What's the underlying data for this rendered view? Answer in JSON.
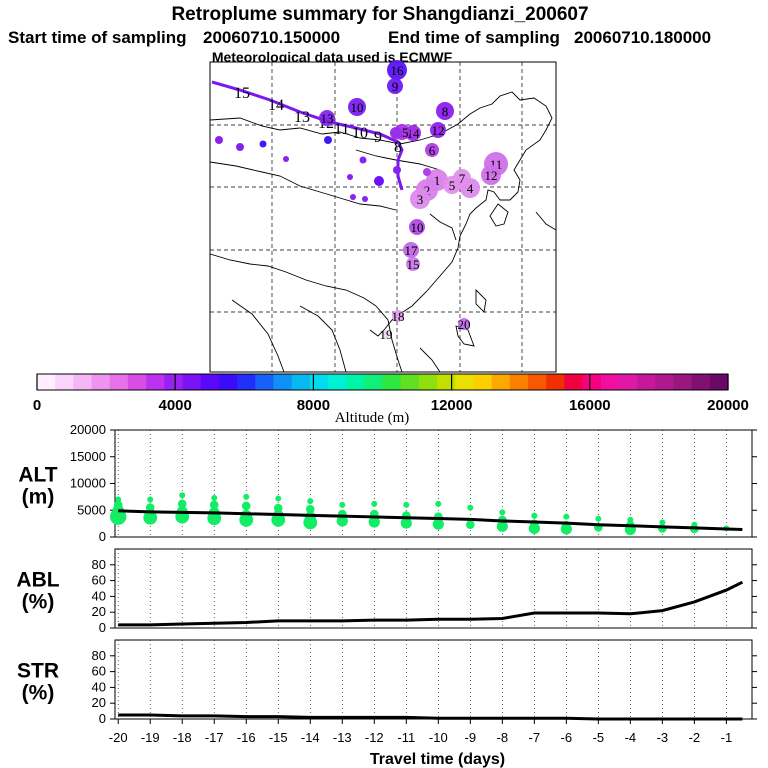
{
  "title": "Retroplume summary for Shangdianzi_200607",
  "subtitle_start_label": "Start time of sampling",
  "subtitle_start_value": "20060710.150000",
  "subtitle_end_label": "End time of sampling",
  "subtitle_end_value": "20060710.180000",
  "met_line": "Meteorological data used is ECMWF",
  "colorbar": {
    "label": "Altitude (m)",
    "ticks": [
      0,
      4000,
      8000,
      12000,
      16000,
      20000
    ],
    "colors": [
      "#ffeeff",
      "#fad4fa",
      "#f4b6f4",
      "#ee94ee",
      "#e870e8",
      "#d94ce6",
      "#bb33ee",
      "#9922f0",
      "#7a14f4",
      "#5a08f7",
      "#3a0cfa",
      "#2030fa",
      "#1860f8",
      "#1090f5",
      "#08b8f0",
      "#00dcec",
      "#00f0d6",
      "#00f4a8",
      "#10f078",
      "#30e640",
      "#60e020",
      "#90e010",
      "#c0e000",
      "#e8e000",
      "#fcd000",
      "#fca800",
      "#fc8000",
      "#f85800",
      "#f03000",
      "#f00040",
      "#f40080",
      "#f010a0",
      "#e018a8",
      "#c8189a",
      "#b01890",
      "#981880",
      "#801070",
      "#6a0868"
    ]
  },
  "map": {
    "trajectory_labels": [
      "15",
      "14",
      "13",
      "12",
      "11",
      "10",
      "9",
      "8"
    ],
    "clusters": [
      {
        "label": "16",
        "color": "#5a14f4",
        "r": 10
      },
      {
        "label": "9",
        "color": "#6e1cf2",
        "r": 8
      },
      {
        "label": "10",
        "color": "#7a20f0",
        "r": 9
      },
      {
        "label": "8",
        "color": "#8a20ee",
        "r": 9
      },
      {
        "label": "13",
        "color": "#8624ee",
        "r": 8
      },
      {
        "label": "12",
        "color": "#9422ee",
        "r": 8
      },
      {
        "label": "14",
        "color": "#a028e8",
        "r": 8
      },
      {
        "label": "15",
        "color": "#a832e6",
        "r": 8
      },
      {
        "label": "6",
        "color": "#b03ee4",
        "r": 7
      },
      {
        "label": "11",
        "color": "#d070e8",
        "r": 12
      },
      {
        "label": "12",
        "color": "#d070e8",
        "r": 10
      },
      {
        "label": "1",
        "color": "#d880ea",
        "r": 11
      },
      {
        "label": "2",
        "color": "#d880ea",
        "r": 11
      },
      {
        "label": "3",
        "color": "#dc8aec",
        "r": 10
      },
      {
        "label": "4",
        "color": "#dc8aec",
        "r": 10
      },
      {
        "label": "5",
        "color": "#e090ec",
        "r": 9
      },
      {
        "label": "7",
        "color": "#e090ec",
        "r": 9
      },
      {
        "label": "10",
        "color": "#b04ae4",
        "r": 8
      },
      {
        "label": "17",
        "color": "#c068e8",
        "r": 8
      },
      {
        "label": "15",
        "color": "#c878ea",
        "r": 7
      },
      {
        "label": "18",
        "color": "#e0a0ee",
        "r": 6
      },
      {
        "label": "19",
        "color": "#f4d6f4",
        "r": 4
      },
      {
        "label": "20",
        "color": "#c06ce8",
        "r": 6
      }
    ]
  },
  "chart_data": [
    {
      "type": "scatter",
      "panel": "ALT",
      "ylabel_line1": "ALT",
      "ylabel_line2": "(m)",
      "ylim": [
        0,
        20000
      ],
      "yticks": [
        0,
        5000,
        10000,
        15000,
        20000
      ],
      "xlim": [
        -20,
        -0.5
      ],
      "mean_line": {
        "x": [
          -20,
          -19,
          -18,
          -17,
          -16,
          -15,
          -14,
          -13,
          -12,
          -11,
          -10,
          -9,
          -8,
          -7,
          -6,
          -5,
          -4,
          -3,
          -2,
          -1,
          -0.5
        ],
        "y": [
          4900,
          4700,
          4600,
          4500,
          4350,
          4200,
          4050,
          3900,
          3750,
          3600,
          3450,
          3300,
          3000,
          2800,
          2600,
          2300,
          2100,
          1900,
          1700,
          1500,
          1400
        ]
      },
      "points": [
        {
          "x": -20,
          "y": [
            7000,
            6000,
            5000,
            4200,
            3800
          ]
        },
        {
          "x": -19,
          "y": [
            7000,
            5500,
            4200,
            3600
          ]
        },
        {
          "x": -18,
          "y": [
            7800,
            6200,
            4700,
            3800
          ]
        },
        {
          "x": -17,
          "y": [
            7300,
            6000,
            4500,
            3500
          ]
        },
        {
          "x": -16,
          "y": [
            7500,
            5800,
            4000,
            3200
          ]
        },
        {
          "x": -15,
          "y": [
            7200,
            5400,
            4000,
            3200
          ]
        },
        {
          "x": -14,
          "y": [
            6700,
            5200,
            3700,
            2700
          ]
        },
        {
          "x": -13,
          "y": [
            6000,
            4300,
            3000
          ]
        },
        {
          "x": -12,
          "y": [
            6200,
            4300,
            2800
          ]
        },
        {
          "x": -11,
          "y": [
            6000,
            4000,
            2600
          ]
        },
        {
          "x": -10,
          "y": [
            6200,
            3800,
            2400
          ]
        },
        {
          "x": -9,
          "y": [
            5500,
            2300
          ]
        },
        {
          "x": -8,
          "y": [
            4600,
            3200,
            2000
          ]
        },
        {
          "x": -7,
          "y": [
            4000,
            2500,
            1600
          ]
        },
        {
          "x": -6,
          "y": [
            3800,
            2200,
            1500
          ]
        },
        {
          "x": -5,
          "y": [
            3400,
            1800
          ]
        },
        {
          "x": -4,
          "y": [
            3200,
            2200,
            1400
          ]
        },
        {
          "x": -3,
          "y": [
            2700,
            1600
          ]
        },
        {
          "x": -2,
          "y": [
            2300,
            1500
          ]
        },
        {
          "x": -1,
          "y": [
            1600
          ]
        }
      ],
      "point_color": "#11ee66"
    },
    {
      "type": "line",
      "panel": "ABL",
      "ylabel_line1": "ABL",
      "ylabel_line2": "(%)",
      "ylim": [
        0,
        100
      ],
      "yticks": [
        0,
        20,
        40,
        60,
        80
      ],
      "x": [
        -20,
        -19,
        -18,
        -17,
        -16,
        -15,
        -14,
        -13,
        -12,
        -11,
        -10,
        -9,
        -8,
        -7,
        -6,
        -5,
        -4,
        -3,
        -2,
        -1,
        -0.5
      ],
      "y": [
        4,
        4,
        5,
        6,
        7,
        9,
        9,
        9,
        10,
        10,
        11,
        11,
        12,
        19,
        19,
        19,
        18,
        22,
        33,
        48,
        58
      ]
    },
    {
      "type": "line",
      "panel": "STR",
      "ylabel_line1": "STR",
      "ylabel_line2": "(%)",
      "ylim": [
        0,
        100
      ],
      "yticks": [
        0,
        20,
        40,
        60,
        80
      ],
      "x": [
        -20,
        -19,
        -18,
        -17,
        -16,
        -15,
        -14,
        -13,
        -12,
        -11,
        -10,
        -9,
        -8,
        -7,
        -6,
        -5,
        -4,
        -3,
        -2,
        -1,
        -0.5
      ],
      "y": [
        5,
        5,
        4,
        4,
        3,
        3,
        2,
        2,
        2,
        2,
        1,
        1,
        1,
        1,
        1,
        0,
        0,
        0,
        0,
        0,
        0
      ],
      "xlabel": "Travel time (days)",
      "xticks": [
        -20,
        -19,
        -18,
        -17,
        -16,
        -15,
        -14,
        -13,
        -12,
        -11,
        -10,
        -9,
        -8,
        -7,
        -6,
        -5,
        -4,
        -3,
        -2,
        -1
      ]
    }
  ]
}
